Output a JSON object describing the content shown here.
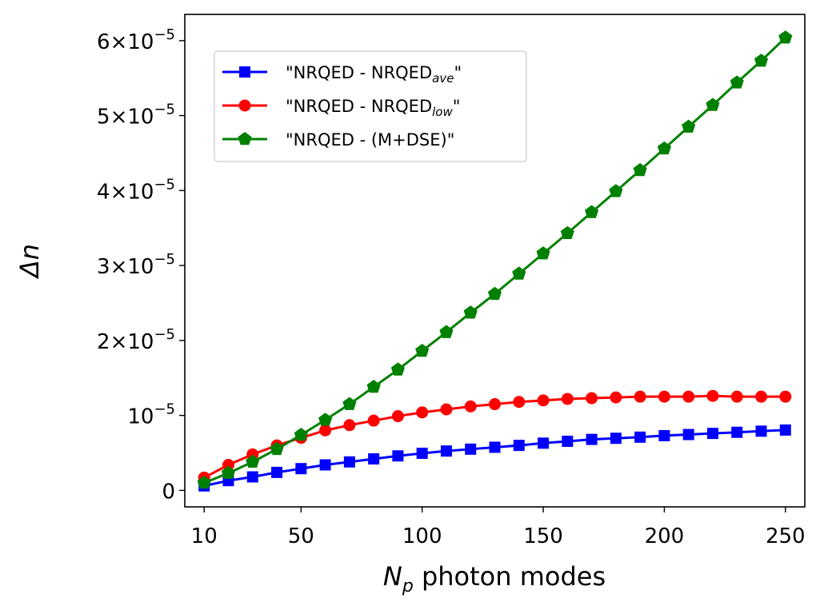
{
  "chart_data": {
    "type": "line",
    "title": "",
    "xlabel_symbol": "N",
    "xlabel_subscript": "p",
    "xlabel_rest": " photon modes",
    "ylabel": "Δn",
    "xlim": [
      2,
      258
    ],
    "ylim": [
      -2.2e-06,
      6.35e-05
    ],
    "x_ticks": [
      10,
      50,
      100,
      150,
      200,
      250
    ],
    "x_tick_labels": [
      "10",
      "50",
      "100",
      "150",
      "200",
      "250"
    ],
    "y_ticks": [
      {
        "value": 0,
        "mantissa": "0",
        "exponent": ""
      },
      {
        "value": 1e-05,
        "mantissa": "10",
        "exponent": "−5"
      },
      {
        "value": 2e-05,
        "mantissa": "2×10",
        "exponent": "−5"
      },
      {
        "value": 3e-05,
        "mantissa": "3×10",
        "exponent": "−5"
      },
      {
        "value": 4e-05,
        "mantissa": "4×10",
        "exponent": "−5"
      },
      {
        "value": 5e-05,
        "mantissa": "5×10",
        "exponent": "−5"
      },
      {
        "value": 6e-05,
        "mantissa": "6×10",
        "exponent": "−5"
      }
    ],
    "x": [
      10,
      20,
      30,
      40,
      50,
      60,
      70,
      80,
      90,
      100,
      110,
      120,
      130,
      140,
      150,
      160,
      170,
      180,
      190,
      200,
      210,
      220,
      230,
      240,
      250
    ],
    "series": [
      {
        "name": "\"NRQED - NRQED",
        "name_sub": "ave",
        "name_end": "\"",
        "color": "#0000ff",
        "marker": "square",
        "values": [
          6e-07,
          1.3e-06,
          1.8e-06,
          2.4e-06,
          2.9e-06,
          3.4e-06,
          3.8e-06,
          4.2e-06,
          4.6e-06,
          4.95e-06,
          5.25e-06,
          5.5e-06,
          5.75e-06,
          6e-06,
          6.3e-06,
          6.55e-06,
          6.8e-06,
          6.95e-06,
          7.1e-06,
          7.3e-06,
          7.45e-06,
          7.6e-06,
          7.75e-06,
          7.9e-06,
          8.05e-06
        ]
      },
      {
        "name": "\"NRQED - NRQED",
        "name_sub": "low",
        "name_end": "\"",
        "color": "#ff0000",
        "marker": "circle",
        "values": [
          1.7e-06,
          3.4e-06,
          4.8e-06,
          6e-06,
          7e-06,
          8e-06,
          8.7e-06,
          9.3e-06,
          9.9e-06,
          1.04e-05,
          1.08e-05,
          1.12e-05,
          1.15e-05,
          1.18e-05,
          1.2e-05,
          1.22e-05,
          1.23e-05,
          1.24e-05,
          1.25e-05,
          1.25e-05,
          1.25e-05,
          1.26e-05,
          1.25e-05,
          1.25e-05,
          1.25e-05
        ]
      },
      {
        "name": "\"NRQED - (M+DSE)\"",
        "name_sub": "",
        "name_end": "",
        "color": "#008000",
        "marker": "pentagon",
        "values": [
          1e-06,
          2.3e-06,
          3.8e-06,
          5.5e-06,
          7.4e-06,
          9.4e-06,
          1.15e-05,
          1.38e-05,
          1.61e-05,
          1.86e-05,
          2.11e-05,
          2.37e-05,
          2.62e-05,
          2.89e-05,
          3.16e-05,
          3.43e-05,
          3.71e-05,
          3.99e-05,
          4.27e-05,
          4.56e-05,
          4.85e-05,
          5.14e-05,
          5.44e-05,
          5.73e-05,
          6.04e-05
        ]
      }
    ],
    "legend_position": "upper-left"
  }
}
